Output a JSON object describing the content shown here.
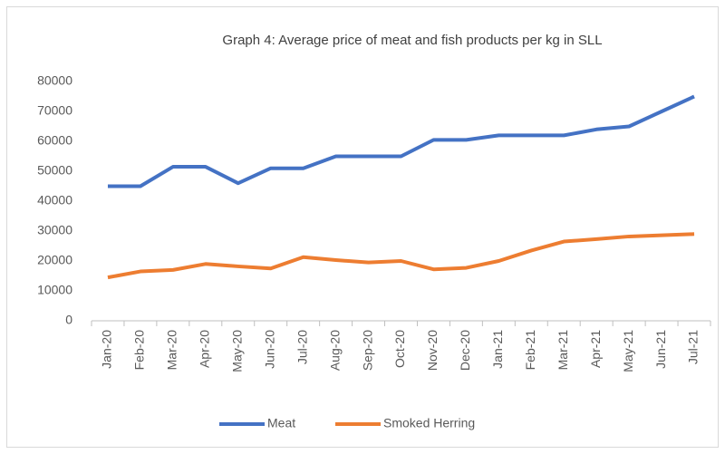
{
  "chart_data": {
    "type": "line",
    "title": "Graph 4: Average price of meat and fish products per kg in SLL",
    "categories": [
      "Jan-20",
      "Feb-20",
      "Mar-20",
      "Apr-20",
      "May-20",
      "Jun-20",
      "Jul-20",
      "Aug-20",
      "Sep-20",
      "Oct-20",
      "Nov-20",
      "Dec-20",
      "Jan-21",
      "Feb-21",
      "Mar-21",
      "Apr-21",
      "May-21",
      "Jun-21",
      "Jul-21"
    ],
    "series": [
      {
        "name": "Meat",
        "color": "#4472c4",
        "values": [
          45000,
          45000,
          51500,
          51500,
          46000,
          51000,
          51000,
          55000,
          55000,
          55000,
          60500,
          60500,
          62000,
          62000,
          62000,
          64000,
          65000,
          70000,
          75000
        ]
      },
      {
        "name": "Smoked Herring",
        "color": "#ed7d31",
        "values": [
          14500,
          16500,
          17000,
          19000,
          18200,
          17500,
          21300,
          20300,
          19500,
          20000,
          17200,
          17700,
          20000,
          23500,
          26500,
          27300,
          28200,
          28600,
          29000
        ]
      }
    ],
    "ylim": [
      0,
      80000
    ],
    "yticks": [
      0,
      10000,
      20000,
      30000,
      40000,
      50000,
      60000,
      70000,
      80000
    ],
    "grid": false,
    "legend": "bottom"
  }
}
